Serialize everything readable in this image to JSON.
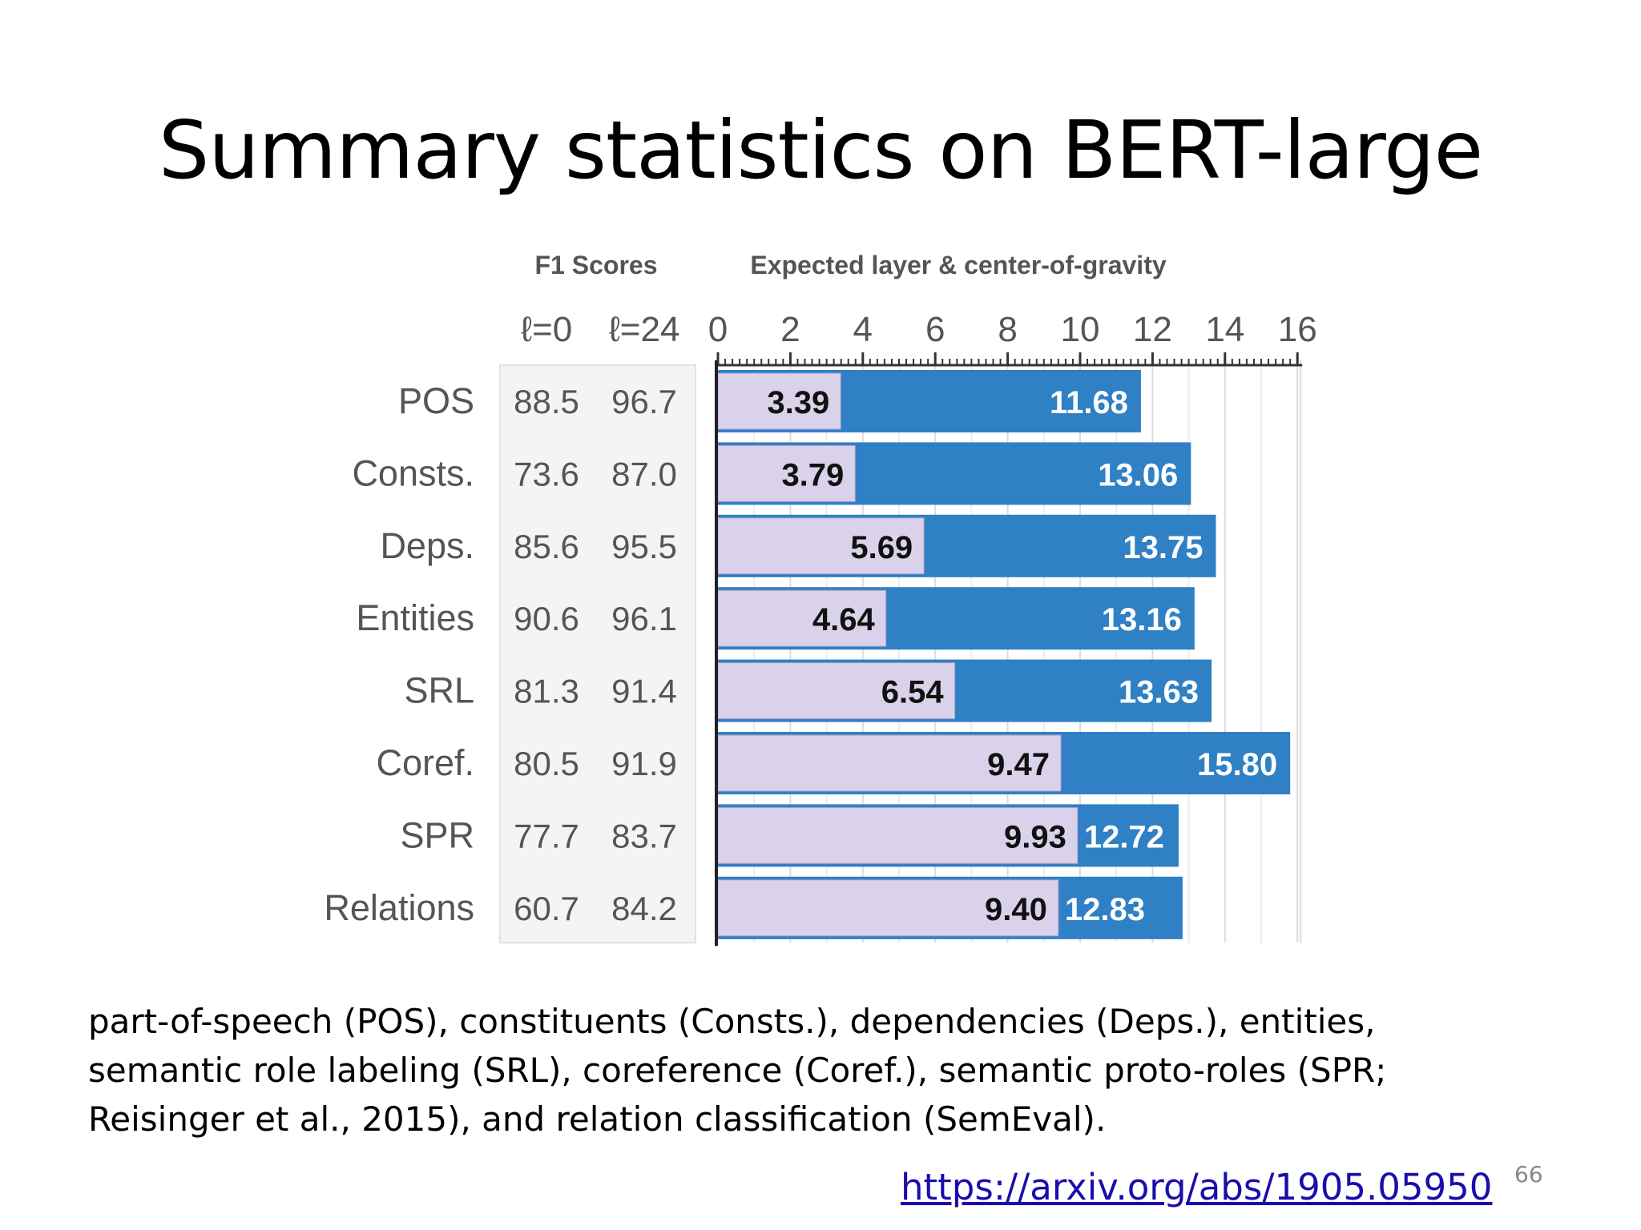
{
  "slide": {
    "title": "Summary statistics on BERT-large",
    "caption_lines": [
      "part-of-speech (POS), constituents (Consts.), dependencies (Deps.), entities,",
      "semantic role labeling (SRL), coreference (Coref.), semantic proto-roles (SPR;",
      "Reisinger et al., 2015), and relation classification (SemEval)."
    ],
    "link": "https://arxiv.org/abs/1905.05950",
    "page_number": "66"
  },
  "chart_data": {
    "type": "bar",
    "f1_header": "F1 Scores",
    "bar_header": "Expected layer & center-of-gravity",
    "f1_columns": [
      "ℓ=0",
      "ℓ=24"
    ],
    "categories": [
      "POS",
      "Consts.",
      "Deps.",
      "Entities",
      "SRL",
      "Coref.",
      "SPR",
      "Relations"
    ],
    "f1_l0": [
      "88.5",
      "73.6",
      "85.6",
      "90.6",
      "81.3",
      "80.5",
      "77.7",
      "60.7"
    ],
    "f1_l24": [
      "96.7",
      "87.0",
      "95.5",
      "96.1",
      "91.4",
      "91.9",
      "83.7",
      "84.2"
    ],
    "series": [
      {
        "values": [
          3.39,
          3.79,
          5.69,
          4.64,
          6.54,
          9.47,
          9.93,
          9.4
        ],
        "labels": [
          "3.39",
          "3.79",
          "5.69",
          "4.64",
          "6.54",
          "9.47",
          "9.93",
          "9.40"
        ],
        "color": "#d9d2ea"
      },
      {
        "values": [
          11.68,
          13.06,
          13.75,
          13.16,
          13.63,
          15.8,
          12.72,
          12.83
        ],
        "labels": [
          "11.68",
          "13.06",
          "13.75",
          "13.16",
          "13.63",
          "15.80",
          "12.72",
          "12.83"
        ],
        "color": "#2f80c5"
      }
    ],
    "xticks": [
      "0",
      "2",
      "4",
      "6",
      "8",
      "10",
      "12",
      "14",
      "16"
    ],
    "xlim": [
      0,
      16
    ],
    "grid": true
  }
}
